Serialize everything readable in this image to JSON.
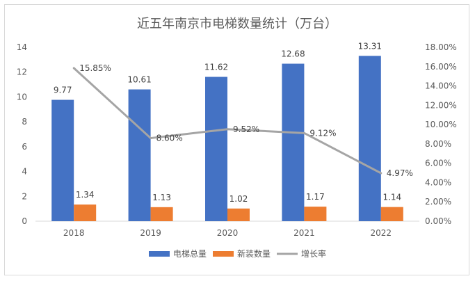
{
  "chart_data": {
    "type": "bar",
    "title": "近五年南京市电梯数量统计（万台）",
    "categories": [
      "2018",
      "2019",
      "2020",
      "2021",
      "2022"
    ],
    "series": [
      {
        "name": "电梯总量",
        "kind": "bar",
        "axis": "left",
        "color": "#4472C4",
        "values": [
          9.77,
          10.61,
          11.62,
          12.68,
          13.31
        ],
        "labels": [
          "9.77",
          "10.61",
          "11.62",
          "12.68",
          "13.31"
        ]
      },
      {
        "name": "新装数量",
        "kind": "bar",
        "axis": "left",
        "color": "#ED7D31",
        "values": [
          1.34,
          1.13,
          1.02,
          1.17,
          1.14
        ],
        "labels": [
          "1.34",
          "1.13",
          "1.02",
          "1.17",
          "1.14"
        ]
      },
      {
        "name": "增长率",
        "kind": "line",
        "axis": "right",
        "color": "#A5A5A5",
        "values": [
          15.85,
          8.6,
          9.52,
          9.12,
          4.97
        ],
        "labels": [
          "15.85%",
          "8.60%",
          "9.52%",
          "9.12%",
          "4.97%"
        ]
      }
    ],
    "y_left": {
      "min": 0,
      "max": 14,
      "ticks": [
        "0",
        "2",
        "4",
        "6",
        "8",
        "10",
        "12",
        "14"
      ]
    },
    "y_right": {
      "min": 0,
      "max": 18,
      "ticks": [
        "0.00%",
        "2.00%",
        "4.00%",
        "6.00%",
        "8.00%",
        "10.00%",
        "12.00%",
        "14.00%",
        "16.00%",
        "18.00%"
      ]
    },
    "xlabel": "",
    "ylabel": "",
    "legend_position": "bottom",
    "grid": false
  }
}
